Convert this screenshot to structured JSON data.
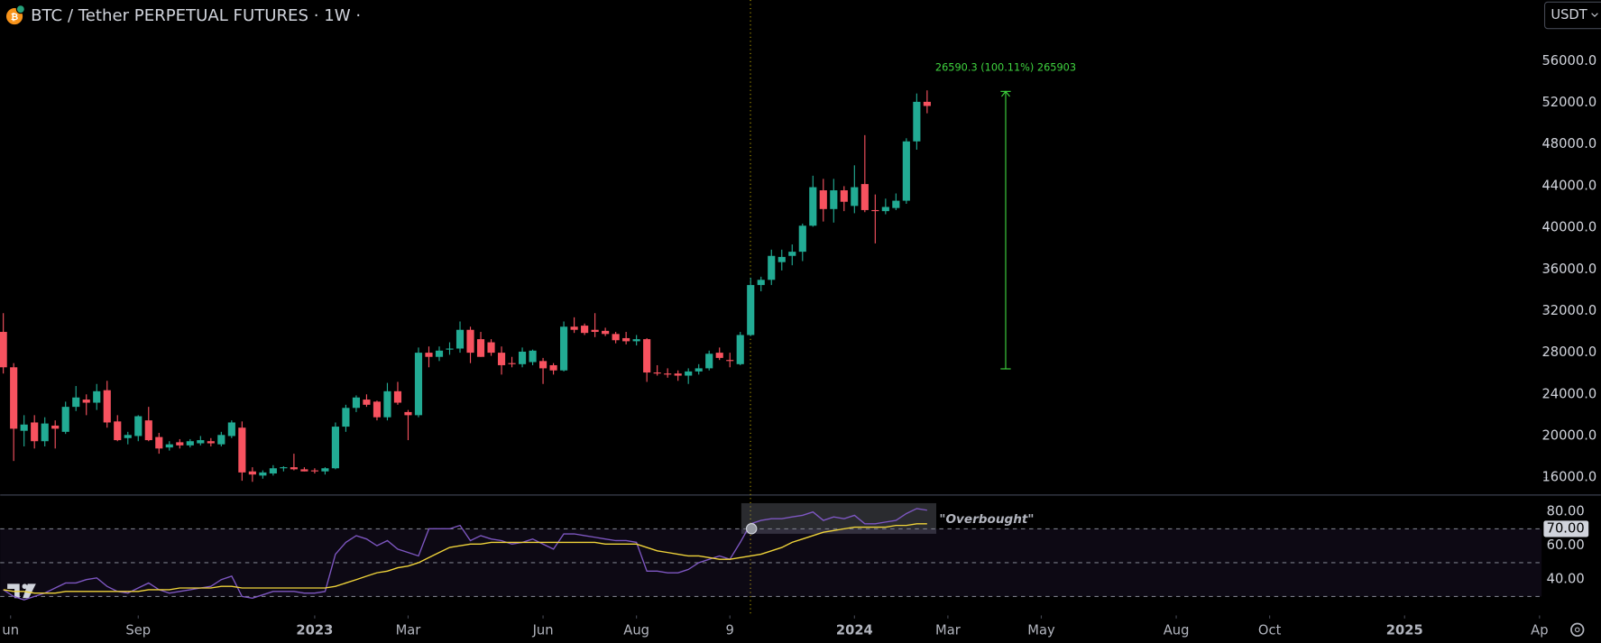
{
  "header": {
    "title": "BTC / Tether PERPETUAL FUTURES · 1W ·",
    "currency_button": "USDT"
  },
  "chart_data": [
    {
      "type": "candlestick",
      "open": [
        30000,
        26600,
        20500,
        21300,
        19500,
        21000,
        20400,
        22800,
        23500,
        23200,
        24400,
        21400,
        19800,
        20000,
        21500,
        19900,
        18900,
        19400,
        19100,
        19300,
        19500,
        19200,
        20000,
        20800,
        16600,
        16200,
        16400,
        16900,
        17000,
        16800,
        16700,
        16600,
        16900,
        20900,
        22700,
        23500,
        23300,
        21800,
        24300,
        22300,
        22000,
        28000,
        27600,
        28300,
        28400,
        30200,
        29300,
        29000,
        28000,
        27000,
        26900,
        27100,
        27200,
        26800,
        26300,
        30500,
        30600,
        30200,
        30100,
        29800,
        29400,
        29100,
        29300,
        26100,
        26000,
        26000,
        25800,
        26200,
        26500,
        28000,
        27300,
        26900,
        29700,
        34500,
        35000,
        36700,
        37300,
        37700,
        40200,
        43600,
        41800,
        43600,
        42100,
        44200,
        41700,
        41600,
        41900,
        42600,
        48300,
        52100
      ],
      "high": [
        31800,
        27000,
        22000,
        22000,
        21800,
        21500,
        23300,
        24800,
        24000,
        25000,
        25300,
        22000,
        20400,
        22000,
        22800,
        20300,
        19500,
        19700,
        19700,
        20000,
        19800,
        20400,
        21500,
        21400,
        17000,
        16700,
        17200,
        17100,
        18300,
        17000,
        16900,
        17000,
        21300,
        23000,
        23900,
        24000,
        23400,
        25100,
        25200,
        22500,
        28500,
        28600,
        28600,
        29000,
        31000,
        30500,
        30000,
        29300,
        28600,
        27600,
        28500,
        28300,
        27500,
        27000,
        31000,
        31400,
        30800,
        31800,
        30400,
        30000,
        30000,
        29700,
        29400,
        26800,
        26500,
        26300,
        26500,
        26900,
        28200,
        28500,
        28000,
        30000,
        35200,
        35300,
        37900,
        37900,
        38400,
        40400,
        45000,
        44700,
        44700,
        44000,
        46000,
        48900,
        43200,
        42800,
        43300,
        48600,
        52900,
        53200
      ],
      "low": [
        26000,
        17600,
        19000,
        18800,
        19000,
        18800,
        20200,
        22400,
        22000,
        22500,
        20800,
        19500,
        19200,
        19500,
        19500,
        18300,
        18600,
        18800,
        18900,
        19100,
        19000,
        19000,
        19800,
        15700,
        15600,
        15900,
        16200,
        16600,
        16700,
        16600,
        16400,
        16300,
        16800,
        20400,
        22300,
        22800,
        21500,
        21500,
        23000,
        19600,
        21800,
        26600,
        27200,
        27800,
        28000,
        27000,
        27600,
        27700,
        25900,
        26600,
        26600,
        26800,
        25000,
        25900,
        26200,
        29900,
        29700,
        29500,
        29600,
        28900,
        28800,
        28700,
        25200,
        25800,
        25600,
        25300,
        25000,
        25900,
        26300,
        27300,
        26600,
        26800,
        29600,
        33900,
        34500,
        35900,
        36400,
        36800,
        40100,
        40600,
        40500,
        41600,
        41400,
        41500,
        38500,
        41300,
        41700,
        42300,
        47500,
        51000
      ],
      "close": [
        26600,
        20700,
        21100,
        19500,
        21200,
        20700,
        22800,
        23700,
        23200,
        24300,
        21300,
        19600,
        20100,
        21900,
        19600,
        18800,
        19200,
        19100,
        19500,
        19600,
        19300,
        20100,
        21300,
        16500,
        16300,
        16500,
        16900,
        17000,
        16800,
        16600,
        16600,
        16900,
        20900,
        22700,
        23700,
        23000,
        21800,
        24300,
        23200,
        22000,
        28000,
        27600,
        28200,
        28400,
        30200,
        28000,
        27600,
        28000,
        26800,
        26900,
        28100,
        28200,
        26500,
        26300,
        30500,
        30200,
        29900,
        30000,
        29800,
        29200,
        29100,
        29300,
        26100,
        26000,
        25900,
        25800,
        26200,
        26500,
        27900,
        27500,
        27200,
        29700,
        34500,
        35000,
        37300,
        37200,
        37700,
        40200,
        43900,
        41800,
        43600,
        42500,
        43900,
        41700,
        41600,
        42000,
        42600,
        48300,
        52100,
        51700
      ],
      "up_color": "#22ab94",
      "down_color": "#f7525f",
      "ylim": [
        14430,
        61880
      ],
      "yticks": [
        {
          "value": 16000,
          "label": "16000.0"
        },
        {
          "value": 20000,
          "label": "20000.0"
        },
        {
          "value": 24000,
          "label": "24000.0"
        },
        {
          "value": 28000,
          "label": "28000.0"
        },
        {
          "value": 32000,
          "label": "32000.0"
        },
        {
          "value": 36000,
          "label": "36000.0"
        },
        {
          "value": 40000,
          "label": "40000.0"
        },
        {
          "value": 44000,
          "label": "44000.0"
        },
        {
          "value": 48000,
          "label": "48000.0"
        },
        {
          "value": 52000,
          "label": "52000.0"
        },
        {
          "value": 56000,
          "label": "56000.0"
        }
      ],
      "xlim": [
        -0.3,
        148.2
      ],
      "xticks": [
        {
          "value": 0.7,
          "label": "un"
        },
        {
          "value": 13,
          "label": "Sep"
        },
        {
          "value": 30,
          "label": "2023"
        },
        {
          "value": 39,
          "label": "Mar"
        },
        {
          "value": 52,
          "label": "Jun"
        },
        {
          "value": 61,
          "label": "Aug"
        },
        {
          "value": 70,
          "label": "9"
        },
        {
          "value": 82,
          "label": "2024"
        },
        {
          "value": 91,
          "label": "Mar"
        },
        {
          "value": 100,
          "label": "May"
        },
        {
          "value": 113,
          "label": "Aug"
        },
        {
          "value": 122,
          "label": "Oct"
        },
        {
          "value": 135,
          "label": "2025"
        },
        {
          "value": 148,
          "label": "Ap"
        }
      ],
      "measure": {
        "label": "26590.3 (100.11%) 265903",
        "from": 26450,
        "to": 53100,
        "color": "#3fd43f"
      }
    },
    {
      "type": "line",
      "series": [
        {
          "color": "#7e57c2",
          "values": [
            34,
            30,
            28,
            30,
            32,
            35,
            38,
            38,
            40,
            41,
            36,
            33,
            32,
            35,
            38,
            34,
            32,
            33,
            34,
            35,
            36,
            40,
            42,
            30,
            29,
            31,
            33,
            33,
            33,
            32,
            32,
            33,
            55,
            62,
            66,
            64,
            60,
            63,
            58,
            56,
            54,
            70,
            70,
            70,
            72,
            63,
            66,
            64,
            63,
            61,
            62,
            64,
            61,
            58,
            67,
            67,
            66,
            65,
            64,
            63,
            63,
            62,
            45,
            45,
            44,
            44,
            46,
            50,
            52,
            54,
            52,
            62,
            73,
            75,
            76,
            76,
            77,
            78,
            80,
            75,
            77,
            76,
            78,
            73,
            73,
            74,
            75,
            79,
            82,
            81
          ]
        },
        {
          "color": "#f0d43a",
          "values": [
            34,
            33,
            33,
            32,
            32,
            32,
            33,
            33,
            33,
            33,
            33,
            33,
            33,
            33,
            34,
            34,
            34,
            35,
            35,
            35,
            35,
            36,
            36,
            35,
            35,
            35,
            35,
            35,
            35,
            35,
            35,
            35,
            36,
            38,
            40,
            42,
            44,
            45,
            47,
            48,
            50,
            53,
            56,
            59,
            60,
            61,
            61,
            62,
            62,
            62,
            62,
            62,
            62,
            62,
            62,
            62,
            62,
            62,
            61,
            61,
            61,
            61,
            59,
            57,
            56,
            55,
            54,
            54,
            53,
            52,
            52,
            53,
            54,
            55,
            57,
            59,
            62,
            64,
            66,
            68,
            69,
            70,
            71,
            71,
            71,
            71,
            72,
            72,
            73,
            73
          ]
        }
      ],
      "ylim": [
        20,
        90
      ],
      "yticks": [
        {
          "value": 80,
          "label": "80.00"
        },
        {
          "value": 70,
          "label": "70.00"
        },
        {
          "value": 60,
          "label": "60.00"
        },
        {
          "value": 40,
          "label": "40.00"
        }
      ],
      "bands": [
        70,
        50,
        30
      ],
      "annotation": "\"Overbought\""
    }
  ]
}
